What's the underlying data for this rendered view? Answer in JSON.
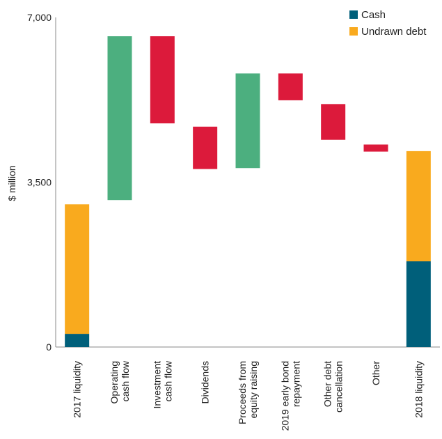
{
  "chart_data": {
    "type": "bar",
    "subtype": "waterfall",
    "ylabel": "$ million",
    "ylim": [
      0,
      7000
    ],
    "yticks": [
      {
        "value": 0,
        "label": "0"
      },
      {
        "value": 3500,
        "label": "3,500"
      },
      {
        "value": 7000,
        "label": "7,000"
      }
    ],
    "grid": false,
    "legend_position": "top-right",
    "legend": [
      {
        "name": "Cash",
        "color": "#005f7a"
      },
      {
        "name": "Undrawn debt",
        "color": "#f9aa1e"
      }
    ],
    "colors": {
      "increase": "#4caf7f",
      "decrease": "#dc1a3b",
      "cash": "#005f7a",
      "undrawn": "#f9aa1e"
    },
    "bars": [
      {
        "category": [
          "2017 liquidity"
        ],
        "kind": "stacked",
        "segments": [
          {
            "series": "Cash",
            "value": 280
          },
          {
            "series": "Undrawn debt",
            "value": 2750
          }
        ]
      },
      {
        "category": [
          "Operating",
          "cash flow"
        ],
        "kind": "increase",
        "from": 3120,
        "to": 6600
      },
      {
        "category": [
          "Investment",
          "cash flow"
        ],
        "kind": "decrease",
        "from": 6600,
        "to": 4750
      },
      {
        "category": [
          "Dividends"
        ],
        "kind": "decrease",
        "from": 4680,
        "to": 3780
      },
      {
        "category": [
          "Proceeds from",
          "equity raising"
        ],
        "kind": "increase",
        "from": 3800,
        "to": 5810
      },
      {
        "category": [
          "2019 early bond",
          "repayment"
        ],
        "kind": "decrease",
        "from": 5810,
        "to": 5240
      },
      {
        "category": [
          "Other debt",
          "cancellation"
        ],
        "kind": "decrease",
        "from": 5160,
        "to": 4400
      },
      {
        "category": [
          "Other"
        ],
        "kind": "decrease",
        "from": 4300,
        "to": 4150
      },
      {
        "category": [
          "2018 liquidity"
        ],
        "kind": "stacked",
        "segments": [
          {
            "series": "Cash",
            "value": 1820
          },
          {
            "series": "Undrawn debt",
            "value": 2340
          }
        ]
      }
    ]
  }
}
